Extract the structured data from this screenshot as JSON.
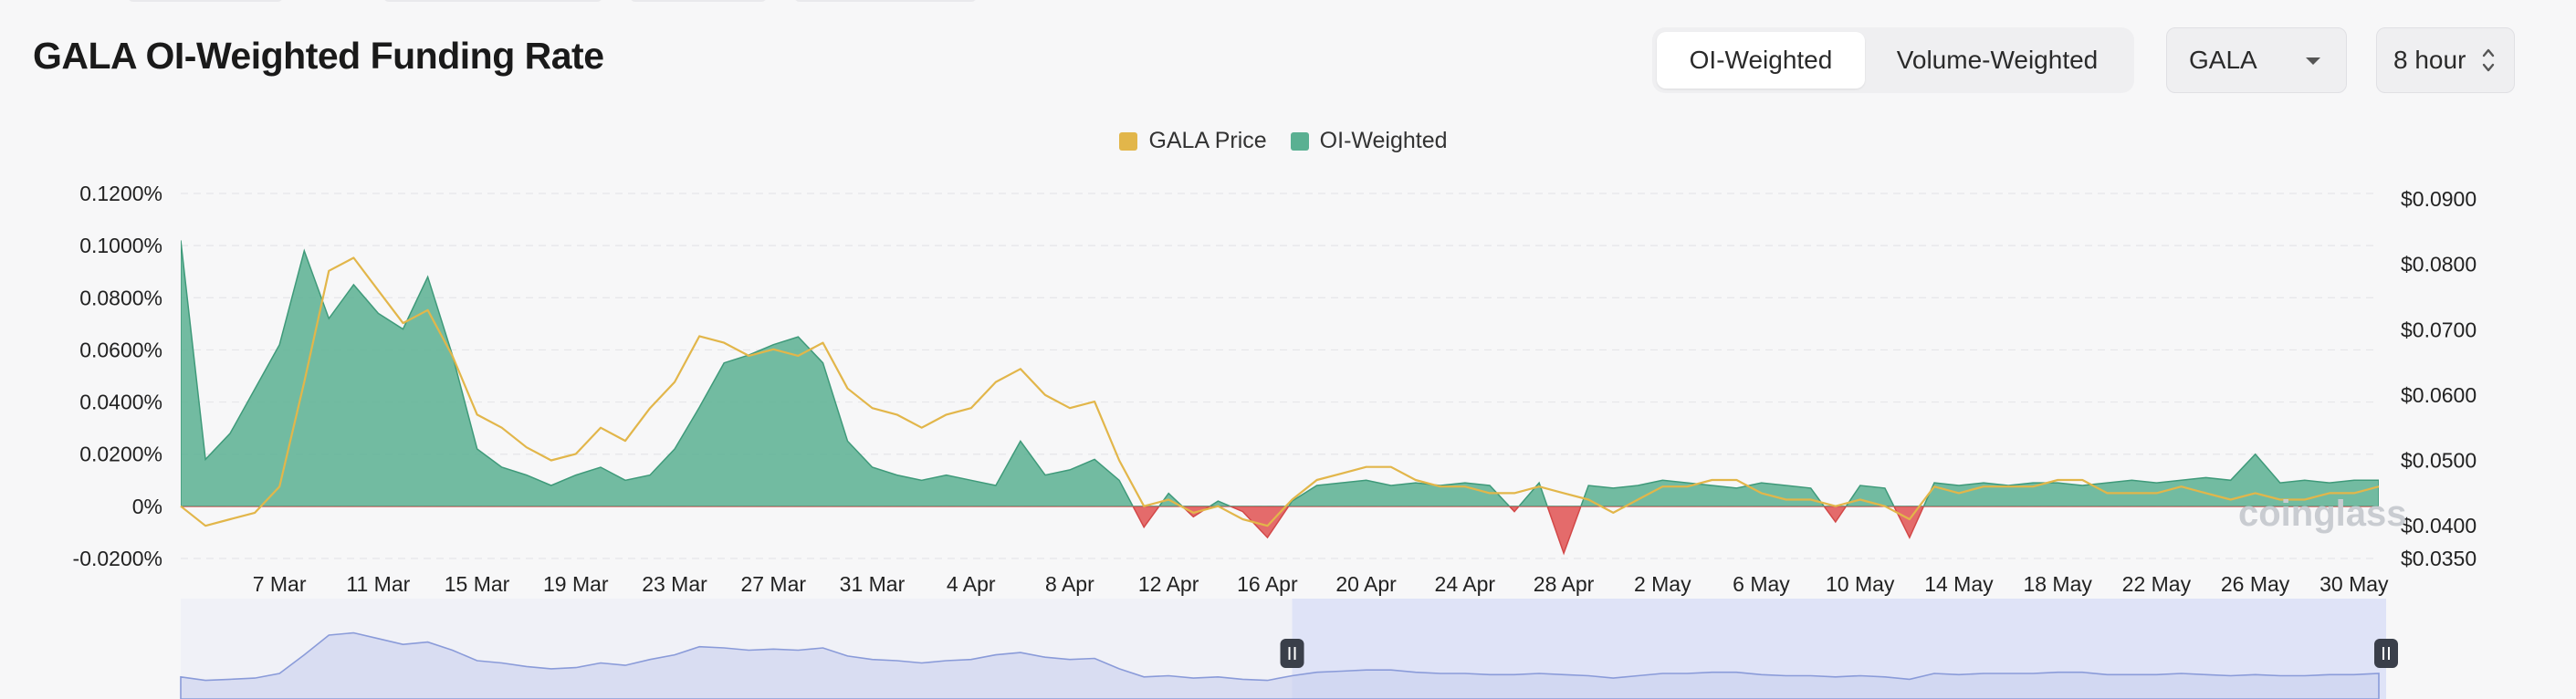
{
  "page": {
    "title": "GALA OI-Weighted Funding Rate"
  },
  "controls": {
    "weighting_tabs": [
      {
        "label": "OI-Weighted",
        "active": true
      },
      {
        "label": "Volume-Weighted",
        "active": false
      }
    ],
    "asset_select": {
      "value": "GALA"
    },
    "interval_select": {
      "value": "8 hour"
    }
  },
  "watermark": "coinglass",
  "colors": {
    "price": "#e2b64a",
    "funding_positive": "#5ab092",
    "funding_negative": "#e15b5b",
    "navigator_fill": "#dfe3f7",
    "navigator_line": "#8a9bd9"
  },
  "chart_data": {
    "type": "area",
    "title": "",
    "legend": {
      "placement": "top-center",
      "entries": [
        "GALA Price",
        "OI-Weighted"
      ]
    },
    "grid": {
      "horizontal": true,
      "vertical": false
    },
    "x_axis": {
      "type": "date",
      "range": [
        "2024-03-05",
        "2024-06-02"
      ],
      "tick_labels": [
        "7 Mar",
        "11 Mar",
        "15 Mar",
        "19 Mar",
        "23 Mar",
        "27 Mar",
        "31 Mar",
        "4 Apr",
        "8 Apr",
        "12 Apr",
        "16 Apr",
        "20 Apr",
        "24 Apr",
        "28 Apr",
        "2 May",
        "6 May",
        "10 May",
        "14 May",
        "18 May",
        "22 May",
        "26 May",
        "30 May"
      ]
    },
    "y_axis_left": {
      "label": "",
      "unit": "%",
      "range": [
        -0.02,
        0.12
      ],
      "tick_labels": [
        "0.1200%",
        "0.1000%",
        "0.0800%",
        "0.0600%",
        "0.0400%",
        "0.0200%",
        "0%",
        "-0.0200%"
      ]
    },
    "y_axis_right": {
      "label": "",
      "unit": "$",
      "range": [
        0.035,
        0.09
      ],
      "tick_labels": [
        "$0.0900",
        "$0.0800",
        "$0.0700",
        "$0.0600",
        "$0.0500",
        "$0.0400",
        "$0.0350"
      ]
    },
    "series": [
      {
        "name": "OI-Weighted",
        "axis": "left",
        "kind": "area",
        "x": [
          "2024-03-05",
          "2024-03-06",
          "2024-03-07",
          "2024-03-08",
          "2024-03-09",
          "2024-03-10",
          "2024-03-11",
          "2024-03-12",
          "2024-03-13",
          "2024-03-14",
          "2024-03-15",
          "2024-03-16",
          "2024-03-17",
          "2024-03-18",
          "2024-03-19",
          "2024-03-20",
          "2024-03-21",
          "2024-03-22",
          "2024-03-23",
          "2024-03-24",
          "2024-03-25",
          "2024-03-26",
          "2024-03-27",
          "2024-03-28",
          "2024-03-29",
          "2024-03-30",
          "2024-03-31",
          "2024-04-01",
          "2024-04-02",
          "2024-04-03",
          "2024-04-04",
          "2024-04-05",
          "2024-04-06",
          "2024-04-07",
          "2024-04-08",
          "2024-04-09",
          "2024-04-10",
          "2024-04-11",
          "2024-04-12",
          "2024-04-13",
          "2024-04-14",
          "2024-04-15",
          "2024-04-16",
          "2024-04-17",
          "2024-04-18",
          "2024-04-19",
          "2024-04-20",
          "2024-04-21",
          "2024-04-22",
          "2024-04-23",
          "2024-04-24",
          "2024-04-25",
          "2024-04-26",
          "2024-04-27",
          "2024-04-28",
          "2024-04-29",
          "2024-04-30",
          "2024-05-01",
          "2024-05-02",
          "2024-05-03",
          "2024-05-04",
          "2024-05-05",
          "2024-05-06",
          "2024-05-07",
          "2024-05-08",
          "2024-05-09",
          "2024-05-10",
          "2024-05-11",
          "2024-05-12",
          "2024-05-13",
          "2024-05-14",
          "2024-05-15",
          "2024-05-16",
          "2024-05-17",
          "2024-05-18",
          "2024-05-19",
          "2024-05-20",
          "2024-05-21",
          "2024-05-22",
          "2024-05-23",
          "2024-05-24",
          "2024-05-25",
          "2024-05-26",
          "2024-05-27",
          "2024-05-28",
          "2024-05-29",
          "2024-05-30",
          "2024-05-31",
          "2024-06-01",
          "2024-06-02"
        ],
        "values": [
          0.102,
          0.018,
          0.028,
          0.045,
          0.062,
          0.098,
          0.072,
          0.085,
          0.074,
          0.068,
          0.088,
          0.058,
          0.022,
          0.015,
          0.012,
          0.008,
          0.012,
          0.015,
          0.01,
          0.012,
          0.022,
          0.038,
          0.055,
          0.058,
          0.062,
          0.065,
          0.055,
          0.025,
          0.015,
          0.012,
          0.01,
          0.012,
          0.01,
          0.008,
          0.025,
          0.012,
          0.014,
          0.018,
          0.01,
          -0.008,
          0.005,
          -0.004,
          0.002,
          -0.002,
          -0.012,
          0.002,
          0.008,
          0.009,
          0.01,
          0.008,
          0.009,
          0.008,
          0.009,
          0.008,
          -0.002,
          0.009,
          -0.018,
          0.008,
          0.007,
          0.008,
          0.01,
          0.009,
          0.008,
          0.007,
          0.009,
          0.008,
          0.007,
          -0.006,
          0.008,
          0.007,
          -0.012,
          0.009,
          0.008,
          0.009,
          0.008,
          0.009,
          0.009,
          0.008,
          0.009,
          0.01,
          0.009,
          0.01,
          0.011,
          0.01,
          0.02,
          0.009,
          0.01,
          0.009,
          0.01,
          0.01
        ]
      },
      {
        "name": "GALA Price",
        "axis": "right",
        "kind": "line",
        "x": [
          "2024-03-05",
          "2024-03-06",
          "2024-03-07",
          "2024-03-08",
          "2024-03-09",
          "2024-03-10",
          "2024-03-11",
          "2024-03-12",
          "2024-03-13",
          "2024-03-14",
          "2024-03-15",
          "2024-03-16",
          "2024-03-17",
          "2024-03-18",
          "2024-03-19",
          "2024-03-20",
          "2024-03-21",
          "2024-03-22",
          "2024-03-23",
          "2024-03-24",
          "2024-03-25",
          "2024-03-26",
          "2024-03-27",
          "2024-03-28",
          "2024-03-29",
          "2024-03-30",
          "2024-03-31",
          "2024-04-01",
          "2024-04-02",
          "2024-04-03",
          "2024-04-04",
          "2024-04-05",
          "2024-04-06",
          "2024-04-07",
          "2024-04-08",
          "2024-04-09",
          "2024-04-10",
          "2024-04-11",
          "2024-04-12",
          "2024-04-13",
          "2024-04-14",
          "2024-04-15",
          "2024-04-16",
          "2024-04-17",
          "2024-04-18",
          "2024-04-19",
          "2024-04-20",
          "2024-04-21",
          "2024-04-22",
          "2024-04-23",
          "2024-04-24",
          "2024-04-25",
          "2024-04-26",
          "2024-04-27",
          "2024-04-28",
          "2024-04-29",
          "2024-04-30",
          "2024-05-01",
          "2024-05-02",
          "2024-05-03",
          "2024-05-04",
          "2024-05-05",
          "2024-05-06",
          "2024-05-07",
          "2024-05-08",
          "2024-05-09",
          "2024-05-10",
          "2024-05-11",
          "2024-05-12",
          "2024-05-13",
          "2024-05-14",
          "2024-05-15",
          "2024-05-16",
          "2024-05-17",
          "2024-05-18",
          "2024-05-19",
          "2024-05-20",
          "2024-05-21",
          "2024-05-22",
          "2024-05-23",
          "2024-05-24",
          "2024-05-25",
          "2024-05-26",
          "2024-05-27",
          "2024-05-28",
          "2024-05-29",
          "2024-05-30",
          "2024-05-31",
          "2024-06-01",
          "2024-06-02"
        ],
        "values": [
          0.043,
          0.04,
          0.041,
          0.042,
          0.046,
          0.062,
          0.079,
          0.081,
          0.076,
          0.071,
          0.073,
          0.066,
          0.057,
          0.055,
          0.052,
          0.05,
          0.051,
          0.055,
          0.053,
          0.058,
          0.062,
          0.069,
          0.068,
          0.066,
          0.067,
          0.066,
          0.068,
          0.061,
          0.058,
          0.057,
          0.055,
          0.057,
          0.058,
          0.062,
          0.064,
          0.06,
          0.058,
          0.059,
          0.05,
          0.043,
          0.044,
          0.042,
          0.043,
          0.041,
          0.04,
          0.044,
          0.047,
          0.048,
          0.049,
          0.049,
          0.047,
          0.046,
          0.046,
          0.045,
          0.045,
          0.046,
          0.045,
          0.044,
          0.042,
          0.044,
          0.046,
          0.046,
          0.047,
          0.047,
          0.045,
          0.044,
          0.044,
          0.043,
          0.044,
          0.043,
          0.041,
          0.046,
          0.045,
          0.046,
          0.046,
          0.046,
          0.047,
          0.047,
          0.045,
          0.045,
          0.045,
          0.046,
          0.045,
          0.044,
          0.045,
          0.044,
          0.044,
          0.045,
          0.045,
          0.046
        ]
      }
    ],
    "navigator": {
      "selected_range": [
        "2024-04-19",
        "2024-06-02"
      ]
    }
  }
}
